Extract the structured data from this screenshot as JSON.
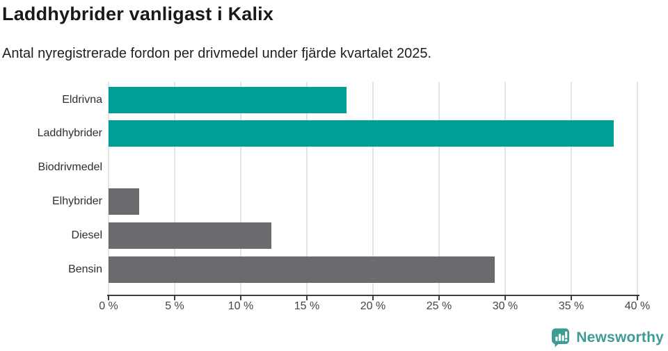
{
  "chart_data": {
    "type": "bar",
    "orientation": "horizontal",
    "title": "Laddhybrider vanligast i Kalix",
    "subtitle": "Antal nyregistrerade fordon per drivmedel under fjärde kvartalet 2025.",
    "categories": [
      "Eldrivna",
      "Laddhybrider",
      "Biodrivmedel",
      "Elhybrider",
      "Diesel",
      "Bensin"
    ],
    "values": [
      18,
      38.2,
      0,
      2.3,
      12.3,
      29.2
    ],
    "unit": "%",
    "bar_colors": [
      "#00a099",
      "#00a099",
      "#6a6a6f",
      "#6a6a6f",
      "#6a6a6f",
      "#6a6a6f"
    ],
    "highlight_color": "#00a099",
    "base_color": "#6a6a6f",
    "xlim": [
      0,
      40
    ],
    "x_ticks": [
      0,
      5,
      10,
      15,
      20,
      25,
      30,
      35,
      40
    ],
    "x_tick_labels": [
      "0 %",
      "5 %",
      "10 %",
      "15 %",
      "20 %",
      "25 %",
      "30 %",
      "35 %",
      "40 %"
    ],
    "grid": true,
    "gridline_color": "#e4e4e4",
    "axis_color": "#3c3c3c",
    "legend": "none"
  },
  "footer": {
    "brand": "Newsworthy",
    "brand_color": "#3f9b96"
  }
}
